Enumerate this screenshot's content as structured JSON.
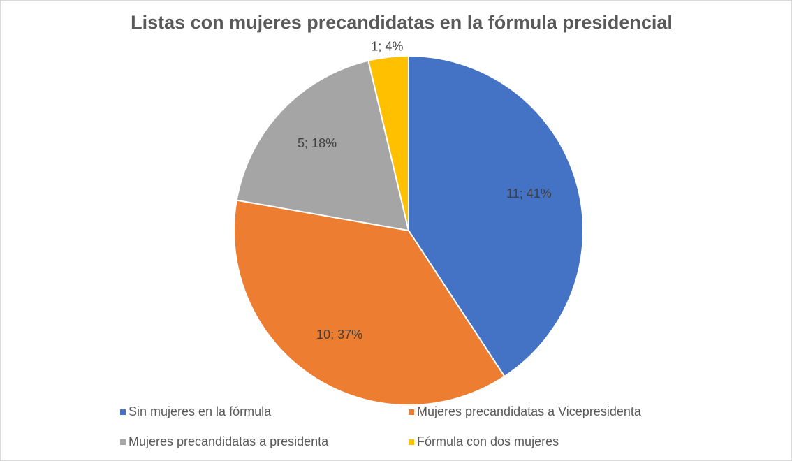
{
  "chart_data": {
    "type": "pie",
    "title": "Listas con mujeres precandidatas en la fórmula presidencial",
    "categories": [
      "Sin mujeres en la fórmula",
      "Mujeres precandidatas a Vicepresidenta",
      "Mujeres precandidatas a presidenta",
      "Fórmula con dos mujeres"
    ],
    "values": [
      11,
      10,
      5,
      1
    ],
    "value_labels": [
      "11; 41%",
      "10; 37%",
      "5; 18%",
      "1; 4%"
    ],
    "colors": [
      "#4472c4",
      "#ed7d31",
      "#a5a5a5",
      "#ffc000"
    ]
  }
}
